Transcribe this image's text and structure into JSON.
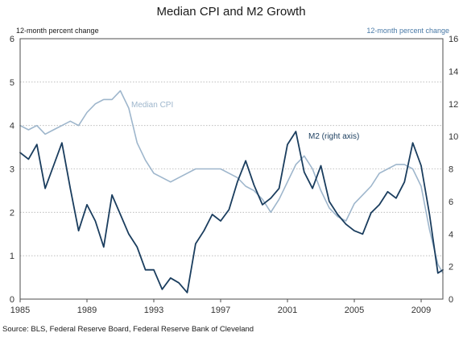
{
  "chart_data": {
    "type": "line",
    "title": "Median CPI and M2 Growth",
    "left_axis_label": "12-month percent change",
    "right_axis_label": "12-month percent change",
    "source": "Source: BLS, Federal Reserve Board, Federal Reserve Bank of Cleveland",
    "x_ticks": [
      "1985",
      "1989",
      "1993",
      "1997",
      "2001",
      "2005",
      "2009"
    ],
    "x_tick_values": [
      1985,
      1989,
      1993,
      1997,
      2001,
      2005,
      2009
    ],
    "xlim": [
      1985,
      2010.3
    ],
    "y_left": {
      "ticks": [
        "0",
        "1",
        "2",
        "3",
        "4",
        "5",
        "6"
      ],
      "ylim": [
        0,
        6
      ]
    },
    "y_right": {
      "ticks": [
        "0",
        "2",
        "4",
        "6",
        "8",
        "10",
        "12",
        "14",
        "16"
      ],
      "ylim": [
        0,
        16
      ]
    },
    "grid": "horizontal-dotted",
    "colors": {
      "median_cpi": "#9eb6cc",
      "m2": "#1a3d5e",
      "text_blue": "#4a7aa7"
    },
    "series": [
      {
        "name": "Median CPI",
        "axis": "left",
        "x": [
          1985.0,
          1985.5,
          1986.0,
          1986.5,
          1987.0,
          1987.5,
          1988.0,
          1988.5,
          1989.0,
          1989.5,
          1990.0,
          1990.5,
          1991.0,
          1991.5,
          1992.0,
          1992.5,
          1993.0,
          1993.5,
          1994.0,
          1994.5,
          1995.0,
          1995.5,
          1996.0,
          1996.5,
          1997.0,
          1997.5,
          1998.0,
          1998.5,
          1999.0,
          1999.5,
          2000.0,
          2000.5,
          2001.0,
          2001.5,
          2002.0,
          2002.5,
          2003.0,
          2003.5,
          2004.0,
          2004.5,
          2005.0,
          2005.5,
          2006.0,
          2006.5,
          2007.0,
          2007.5,
          2008.0,
          2008.5,
          2009.0,
          2009.5,
          2010.0,
          2010.3
        ],
        "values": [
          4.0,
          3.9,
          4.0,
          3.8,
          3.9,
          4.0,
          4.1,
          4.0,
          4.3,
          4.5,
          4.6,
          4.6,
          4.8,
          4.4,
          3.6,
          3.2,
          2.9,
          2.8,
          2.7,
          2.8,
          2.9,
          3.0,
          3.0,
          3.0,
          3.0,
          2.9,
          2.8,
          2.6,
          2.5,
          2.3,
          2.0,
          2.3,
          2.7,
          3.1,
          3.3,
          3.0,
          2.5,
          2.1,
          1.9,
          1.8,
          2.2,
          2.4,
          2.6,
          2.9,
          3.0,
          3.1,
          3.1,
          3.0,
          2.6,
          1.6,
          0.8,
          0.6
        ]
      },
      {
        "name": "M2 (right axis)",
        "axis": "right",
        "x": [
          1985.0,
          1985.5,
          1986.0,
          1986.5,
          1987.0,
          1987.5,
          1988.0,
          1988.5,
          1989.0,
          1989.5,
          1990.0,
          1990.5,
          1991.0,
          1991.5,
          1992.0,
          1992.5,
          1993.0,
          1993.5,
          1994.0,
          1994.5,
          1995.0,
          1995.5,
          1996.0,
          1996.5,
          1997.0,
          1997.5,
          1998.0,
          1998.5,
          1999.0,
          1999.5,
          2000.0,
          2000.5,
          2001.0,
          2001.5,
          2002.0,
          2002.5,
          2003.0,
          2003.5,
          2004.0,
          2004.5,
          2005.0,
          2005.5,
          2006.0,
          2006.5,
          2007.0,
          2007.5,
          2008.0,
          2008.5,
          2009.0,
          2009.5,
          2010.0,
          2010.3
        ],
        "values": [
          9.0,
          8.6,
          9.5,
          6.8,
          8.2,
          9.6,
          6.8,
          4.2,
          5.8,
          4.8,
          3.2,
          6.4,
          5.2,
          4.0,
          3.2,
          1.8,
          1.8,
          0.6,
          1.3,
          1.0,
          0.4,
          3.4,
          4.2,
          5.2,
          4.8,
          5.5,
          7.2,
          8.5,
          7.0,
          5.8,
          6.2,
          6.8,
          9.5,
          10.3,
          7.8,
          6.8,
          8.2,
          6.0,
          5.2,
          4.6,
          4.2,
          4.0,
          5.3,
          5.8,
          6.6,
          6.2,
          7.2,
          9.6,
          8.2,
          5.2,
          1.6,
          1.8
        ]
      }
    ],
    "annotations": [
      {
        "text": "Median CPI",
        "series": "Median CPI"
      },
      {
        "text": "M2 (right axis)",
        "series": "M2 (right axis)"
      }
    ]
  }
}
